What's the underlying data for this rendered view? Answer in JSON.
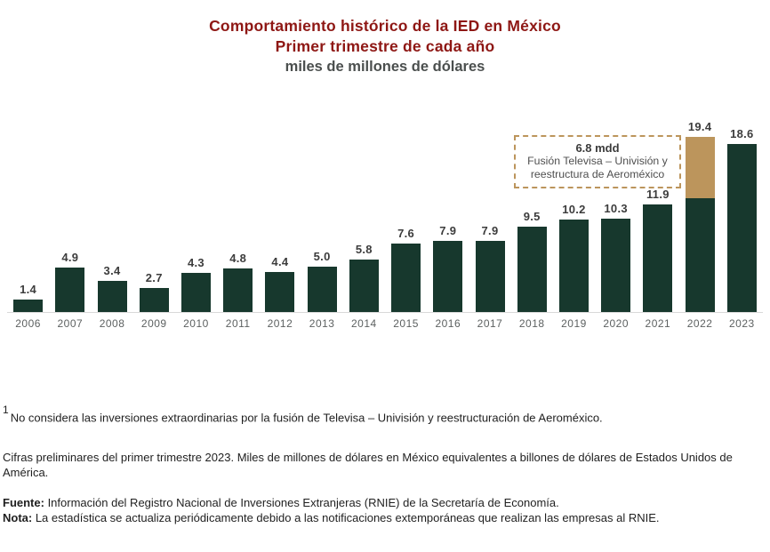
{
  "header": {
    "title_line1": "Comportamiento histórico de la IED en México",
    "title_line2": "Primer trimestre de cada año",
    "subtitle": "miles de millones de dólares"
  },
  "colors": {
    "title_red": "#8e1714",
    "bar_green": "#17382d",
    "bar_gold": "#bc955c",
    "axis_line": "#d9d9d9",
    "tick_gray": "#5d6161"
  },
  "chart_data": {
    "type": "bar",
    "title": "Comportamiento histórico de la IED en México",
    "subtitle": "Primer trimestre de cada año",
    "ylabel": "miles de millones de dólares",
    "xlabel": "",
    "ylim": [
      0,
      20
    ],
    "grid": false,
    "legend": "none",
    "categories": [
      "2006",
      "2007",
      "2008",
      "2009",
      "2010",
      "2011",
      "2012",
      "2013",
      "2014",
      "2015",
      "2016",
      "2017",
      "2018",
      "2019",
      "2020",
      "2021",
      "2022",
      "2023"
    ],
    "values": [
      1.4,
      4.9,
      3.4,
      2.7,
      4.3,
      4.8,
      4.4,
      5.0,
      5.8,
      7.6,
      7.9,
      7.9,
      9.5,
      10.2,
      10.3,
      11.9,
      19.4,
      18.6
    ],
    "labels": [
      "1.4",
      "4.9",
      "3.4",
      "2.7",
      "4.3",
      "4.8",
      "4.4",
      "5.0",
      "5.8",
      "7.6",
      "7.9",
      "7.9",
      "9.5",
      "10.2",
      "10.3",
      "11.9",
      "19.4",
      "18.6"
    ],
    "stacked_segment": {
      "category": "2022",
      "total": 19.4,
      "base_value": 12.6,
      "extra_value": 6.8,
      "extra_color": "#bc955c",
      "extra_meaning": "Fusión Televisa – Univisión y reestructura de Aeroméxico"
    }
  },
  "annotation": {
    "value": "6.8 mdd",
    "desc_line1": "Fusión Televisa – Univisión y",
    "desc_line2": "reestructura de Aeroméxico"
  },
  "footnotes": {
    "sup1": "1",
    "note1": "No considera las inversiones extraordinarias por la fusión de Televisa – Univisión y reestructuración de Aeroméxico.",
    "note2": "Cifras preliminares del primer trimestre 2023. Miles de millones de dólares en México equivalentes a billones de dólares de Estados Unidos de América.",
    "source_label": "Fuente:",
    "source_text": " Información del Registro Nacional de Inversiones Extranjeras (RNIE) de la Secretaría de Economía.",
    "nota_label": "Nota:",
    "nota_text": " La estadística se actualiza periódicamente debido a las notificaciones extemporáneas que realizan las empresas al RNIE."
  }
}
